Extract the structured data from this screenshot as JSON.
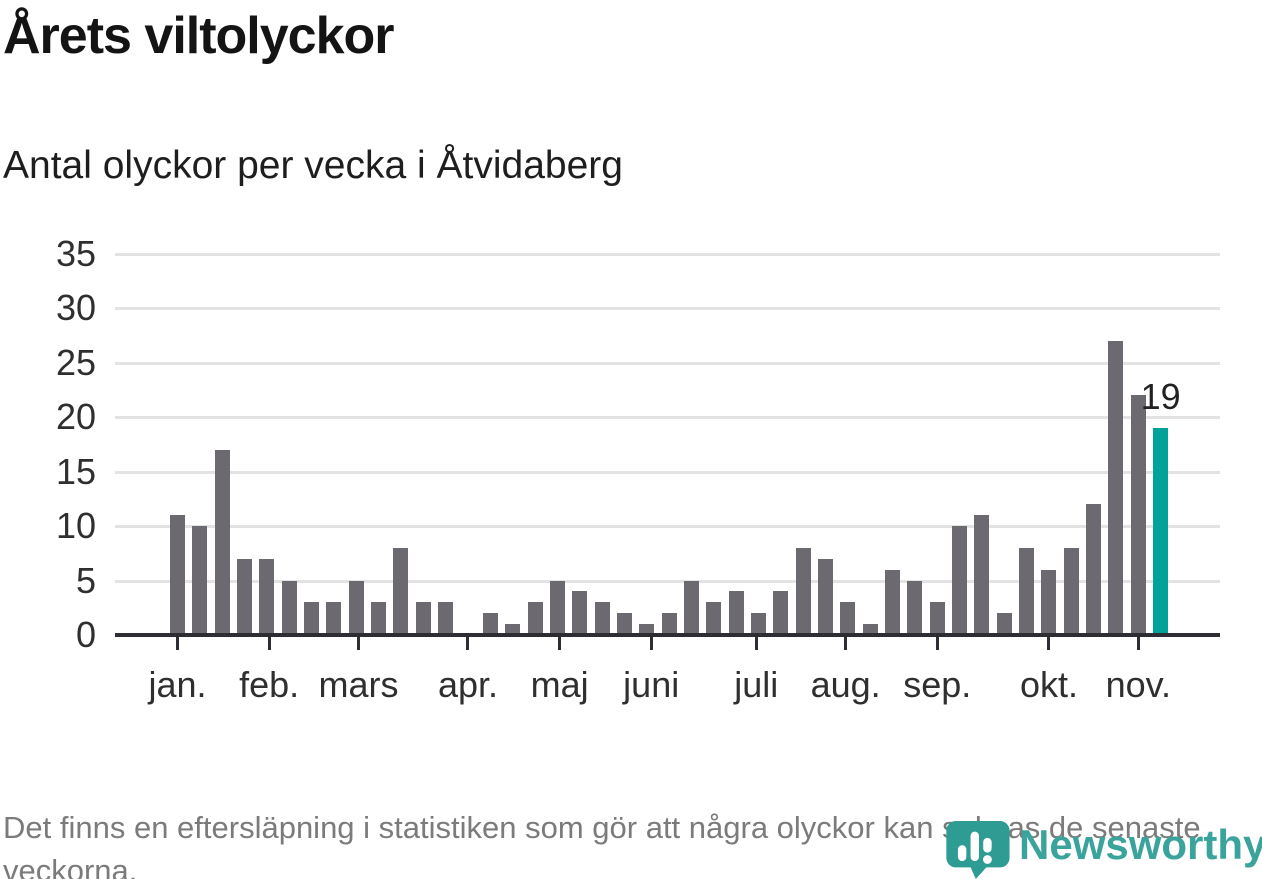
{
  "chart_data": {
    "type": "bar",
    "title": "Årets viltolyckor",
    "subtitle": "Antal olyckor per vecka i Åtvidaberg",
    "x_unit": "vecka",
    "values": [
      11,
      10,
      17,
      7,
      7,
      5,
      3,
      3,
      5,
      3,
      8,
      3,
      3,
      0,
      2,
      1,
      3,
      5,
      4,
      3,
      2,
      1,
      2,
      5,
      3,
      4,
      2,
      4,
      8,
      7,
      3,
      1,
      6,
      5,
      3,
      10,
      11,
      2,
      8,
      6,
      8,
      12,
      27,
      22,
      19
    ],
    "highlight_index": 44,
    "highlight_label": "19",
    "y_ticks": [
      0,
      5,
      10,
      15,
      20,
      25,
      30,
      35
    ],
    "ylim": [
      0,
      35
    ],
    "grid": true,
    "months": [
      {
        "label": "jan.",
        "pos": 0.0
      },
      {
        "label": "feb.",
        "pos": 4.1
      },
      {
        "label": "mars",
        "pos": 8.1
      },
      {
        "label": "apr.",
        "pos": 13.0
      },
      {
        "label": "maj",
        "pos": 17.1
      },
      {
        "label": "juni",
        "pos": 21.2
      },
      {
        "label": "juli",
        "pos": 25.9
      },
      {
        "label": "aug.",
        "pos": 29.9
      },
      {
        "label": "sep.",
        "pos": 34.0
      },
      {
        "label": "okt.",
        "pos": 39.0
      },
      {
        "label": "nov.",
        "pos": 43.0
      }
    ],
    "bar_color": "#6d6970",
    "highlight_color": "#00a29a",
    "grid_color": "#e3e3e3",
    "axis_color": "#2e2d33"
  },
  "footnote": {
    "text": "Det finns en eftersläpning i statistiken som gör att några olyckor kan saknas de senaste veckorna."
  },
  "logo": {
    "text": "Newsworthy",
    "color": "#3aa49c"
  }
}
